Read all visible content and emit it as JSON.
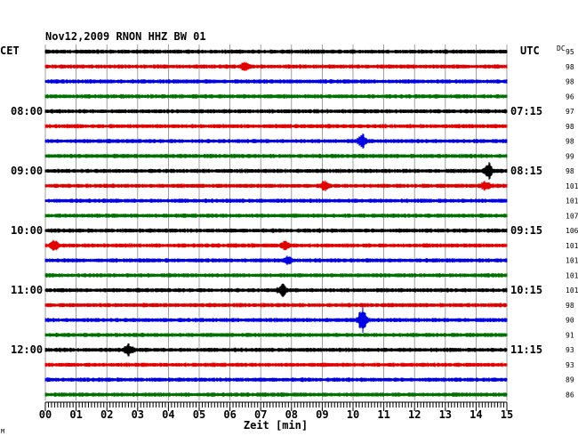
{
  "chart_data": {
    "type": "line",
    "title": "Nov12,2009   RNON HHZ BW 01",
    "xlabel": "Zeit [min]",
    "left_tz": "CET",
    "right_tz": "UTC",
    "dc_header": "DC",
    "xlim": [
      0,
      15
    ],
    "x_ticks": [
      "00",
      "01",
      "02",
      "03",
      "04",
      "05",
      "06",
      "07",
      "08",
      "09",
      "10",
      "11",
      "12",
      "13",
      "14",
      "15"
    ],
    "left_hour_labels": [
      {
        "row": 4,
        "text": "08:00"
      },
      {
        "row": 8,
        "text": "09:00"
      },
      {
        "row": 12,
        "text": "10:00"
      },
      {
        "row": 16,
        "text": "11:00"
      },
      {
        "row": 20,
        "text": "12:00"
      }
    ],
    "right_hour_labels": [
      {
        "row": 4,
        "text": "07:15"
      },
      {
        "row": 8,
        "text": "08:15"
      },
      {
        "row": 12,
        "text": "09:15"
      },
      {
        "row": 16,
        "text": "10:15"
      },
      {
        "row": 20,
        "text": "11:15"
      }
    ],
    "trace_colors": [
      "#000000",
      "#e00000",
      "#0000e0",
      "#007000"
    ],
    "dc_values": [
      "95",
      "98",
      "98",
      "96",
      "97",
      "98",
      "98",
      "99",
      "98",
      "101",
      "101",
      "107",
      "106",
      "101",
      "101",
      "101",
      "101",
      "98",
      "90",
      "91",
      "93",
      "93",
      "89",
      "86"
    ],
    "events": [
      {
        "row": 1,
        "t": 6.5,
        "amp": 1.5
      },
      {
        "row": 6,
        "t": 10.3,
        "amp": 2.2
      },
      {
        "row": 8,
        "t": 14.4,
        "amp": 2.5
      },
      {
        "row": 9,
        "t": 9.1,
        "amp": 1.6
      },
      {
        "row": 9,
        "t": 14.3,
        "amp": 1.4
      },
      {
        "row": 13,
        "t": 0.3,
        "amp": 1.4
      },
      {
        "row": 13,
        "t": 7.8,
        "amp": 1.4
      },
      {
        "row": 14,
        "t": 7.9,
        "amp": 1.3
      },
      {
        "row": 16,
        "t": 7.7,
        "amp": 1.8
      },
      {
        "row": 18,
        "t": 10.3,
        "amp": 4.0
      },
      {
        "row": 20,
        "t": 2.7,
        "amp": 1.8
      }
    ],
    "footer_mark": "M"
  }
}
